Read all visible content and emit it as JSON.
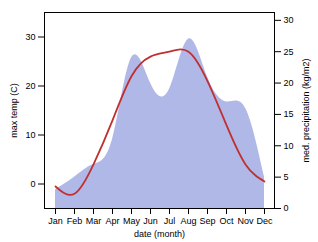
{
  "chart_data": {
    "type": "line",
    "categories": [
      "Jan",
      "Feb",
      "Mar",
      "Apr",
      "May",
      "Jun",
      "Jul",
      "Aug",
      "Sep",
      "Oct",
      "Nov",
      "Dec"
    ],
    "series": [
      {
        "type": "area",
        "axis": "y2",
        "color": "#b0b8e8",
        "values": [
          3,
          5,
          7,
          11,
          24,
          20,
          19,
          27,
          21,
          17,
          16,
          5
        ]
      },
      {
        "type": "line",
        "color": "#c03030",
        "values": [
          -0.5,
          -2,
          4,
          13,
          22,
          26,
          27,
          27,
          21,
          12,
          4,
          0.5
        ]
      }
    ],
    "xlabel": "date (month)",
    "ylabel": "max temp (C)",
    "y2label": "med. precipitation (kg/m2)",
    "ylim": [
      -5,
      35
    ],
    "yticks": [
      0,
      10,
      20,
      30
    ],
    "y2lim": [
      0,
      31.25
    ],
    "y2ticks": [
      0,
      5,
      10,
      15,
      20,
      25,
      30
    ]
  }
}
